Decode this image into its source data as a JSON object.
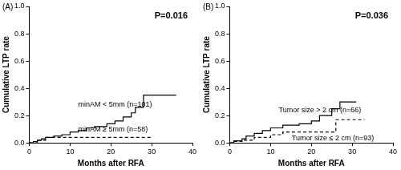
{
  "chart_data": [
    {
      "type": "line",
      "title": "(A)",
      "annotations": [
        "P=0.016"
      ],
      "x_label": "Months after RFA",
      "y_label": "Cumulative LTP rate",
      "xlim": [
        0,
        40
      ],
      "xticks": [
        0,
        10,
        20,
        30,
        40
      ],
      "ylim": [
        0,
        1
      ],
      "yticks": [
        {
          "value": 0,
          "label": "0.0"
        },
        0.2,
        0.4,
        0.6,
        0.8,
        {
          "value": 1,
          "label": "1.0"
        }
      ],
      "grid": false,
      "series": [
        {
          "name": "minAM < 5mm (n=101)",
          "color": "#000000",
          "line_style": "solid",
          "x": [
            0,
            1,
            2,
            3,
            4,
            6,
            8,
            10,
            12,
            14,
            16,
            19,
            21,
            23,
            25,
            26,
            28,
            36
          ],
          "values": [
            0,
            0.01,
            0.02,
            0.03,
            0.04,
            0.05,
            0.06,
            0.08,
            0.09,
            0.11,
            0.12,
            0.14,
            0.16,
            0.19,
            0.22,
            0.26,
            0.35,
            0.35
          ]
        },
        {
          "name": "minAM ≥ 5mm (n=58)",
          "color": "#000000",
          "line_style": "dashed",
          "x": [
            0,
            2,
            4,
            30
          ],
          "values": [
            0,
            0.02,
            0.04,
            0.04
          ]
        }
      ]
    },
    {
      "type": "line",
      "title": "(B)",
      "annotations": [
        "P=0.036"
      ],
      "x_label": "Months after RFA",
      "y_label": "Cumulative LTP rate",
      "xlim": [
        0,
        40
      ],
      "xticks": [
        0,
        10,
        20,
        30,
        40
      ],
      "ylim": [
        0,
        1
      ],
      "yticks": [
        {
          "value": 0,
          "label": "0.0"
        },
        0.2,
        0.4,
        0.6,
        0.8,
        {
          "value": 1,
          "label": "1.0"
        }
      ],
      "grid": false,
      "series": [
        {
          "name": "Tumor size > 2 cm (n=66)",
          "color": "#000000",
          "line_style": "solid",
          "x": [
            0,
            1,
            3,
            4,
            6,
            8,
            10,
            13,
            17,
            20,
            22,
            25,
            27,
            31
          ],
          "values": [
            0,
            0.015,
            0.03,
            0.05,
            0.07,
            0.09,
            0.11,
            0.13,
            0.14,
            0.16,
            0.2,
            0.25,
            0.3,
            0.3
          ]
        },
        {
          "name": "Tumor size ≤ 2 cm (n=93)",
          "color": "#000000",
          "line_style": "dashed",
          "x": [
            0,
            1,
            3,
            6,
            10,
            13,
            26,
            33
          ],
          "values": [
            0,
            0.01,
            0.02,
            0.04,
            0.06,
            0.08,
            0.17,
            0.17
          ]
        }
      ]
    }
  ]
}
